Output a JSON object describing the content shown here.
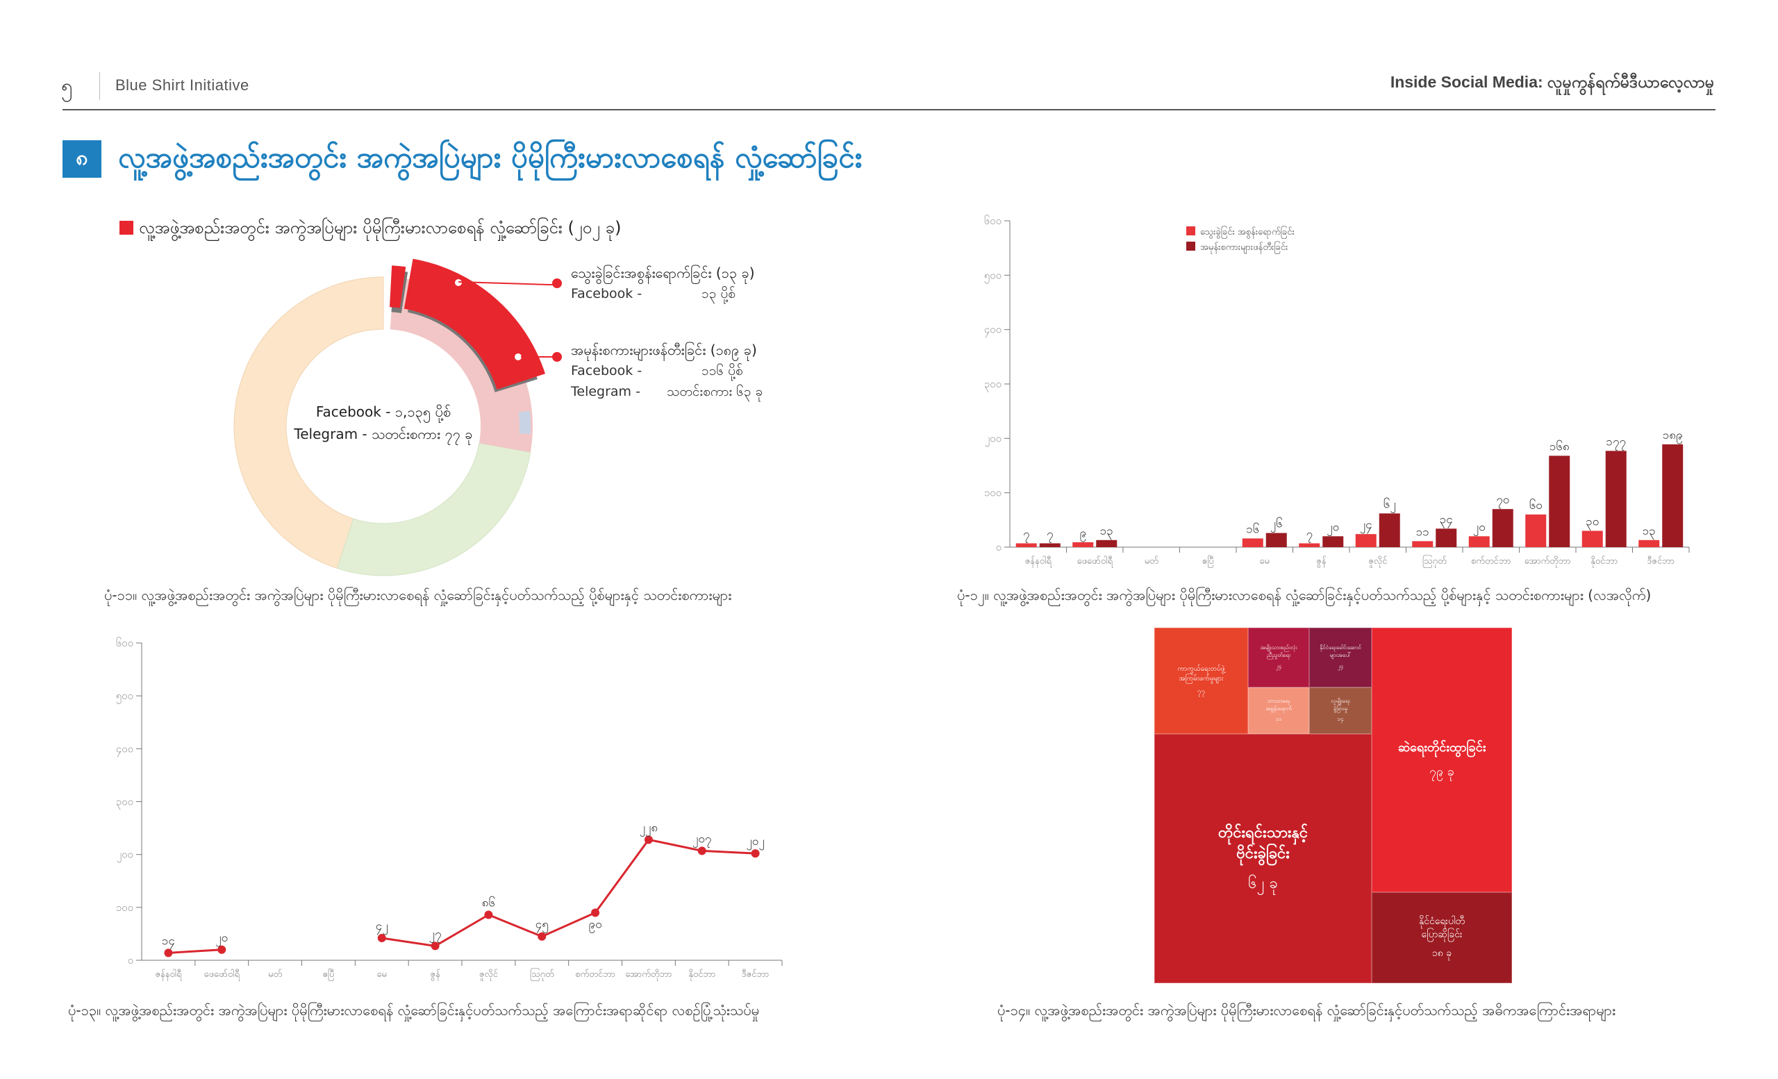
{
  "header": {
    "page_number": "၅",
    "org": "Blue Shirt Initiative",
    "report": "Inside Social Media: လူမှုကွန်ရက်မီဒီယာလေ့လာမှု"
  },
  "section": {
    "number": "၈",
    "title": "လူ့အဖွဲ့အစည်းအတွင်း အကွဲအပြဲများ ပိုမိုကြီးမားလာစေရန် လှုံ့ဆော်ခြင်း"
  },
  "donut": {
    "legend": "လူ့အဖွဲ့အစည်းအတွင်း အကွဲအပြဲများ ပိုမိုကြီးမားလာစေရန် လှုံ့ဆော်ခြင်း (၂၀၂ ခု)",
    "center_line1": "Facebook - ၁,၁၃၅ ပို့စ်",
    "center_line2": "Telegram - သတင်းစကား ၇၇ ခု",
    "callout1_title": "သွေးခွဲခြင်းအစွန်းရောက်ခြင်း (၁၃ ခု)",
    "callout1_fb_label": "Facebook  -",
    "callout1_fb_value": "၁၃ ပို့စ်",
    "callout2_title": "အမုန်းစကားများဖန်တီးခြင်း (၁၈၉ ခု)",
    "callout2_fb_label": "Facebook  -",
    "callout2_fb_value": "၁၁၆ ပို့စ်",
    "callout2_tg_label": "Telegram   -",
    "callout2_tg_value": "သတင်းစကား ၆၃ ခု",
    "caption": "ပုံ-၁၁။ လူ့အဖွဲ့အစည်းအတွင်း အကွဲအပြဲများ ပိုမိုကြီးမားလာစေရန် လှုံ့ဆော်ခြင်းနှင့်ပတ်သက်သည့် ပို့စ်များနှင့် သတင်းစကားများ",
    "colors": {
      "highlight": "#e8262e",
      "peach": "#fde5c9",
      "green": "#e3efd5",
      "pink": "#f2c6c6",
      "gray": "#777777"
    }
  },
  "barchart": {
    "caption": "ပုံ-၁၂။ လူ့အဖွဲ့အစည်းအတွင်း အကွဲအပြဲများ ပိုမိုကြီးမားလာစေရန် လှုံ့ဆော်ခြင်းနှင့်ပတ်သက်သည့် ပို့စ်များနှင့် သတင်းစကားများ (လအလိုက်)",
    "colors": {
      "series1": "#e8363b",
      "series2": "#9c1b22"
    }
  },
  "linechart": {
    "caption": "ပုံ-၁၃။ လူ့အဖွဲ့အစည်းအတွင်း အကွဲအပြဲများ ပိုမိုကြီးမားလာစေရန် လှုံ့ဆော်ခြင်းနှင့်ပတ်သက်သည့် အကြောင်းအရာဆိုင်ရာ လစဉ်ပြုံ့သုံးသပ်မှု",
    "color": "#d9262e"
  },
  "treemap": {
    "caption": "ပုံ-၁၄။ လူ့အဖွဲ့အစည်းအတွင်း အကွဲအပြဲများ ပိုမိုကြီးမားလာစေရန် လှုံ့ဆော်ခြင်းနှင့်ပတ်သက်သည့် အဓိကအကြောင်းအရာများ",
    "cells": [
      {
        "label1": "တိုင်းရင်းသားနှင့်",
        "label2": "ဗိုင်းခွဲခြင်း",
        "value": "၆၂ ခု",
        "color": "#c41f26"
      },
      {
        "label1": "ဆဲရေးတိုင်းထွာခြင်း",
        "label2": "",
        "value": "၇၉ ခု",
        "color": "#e8262e"
      },
      {
        "label1": "နိုင်ငံရေးပါတီ",
        "label2": "ပြောဆိုခြင်း",
        "value": "၁၈ ခု",
        "color": "#9c1b22"
      },
      {
        "label1": "ကာကွယ်ရေးတပ်ဖွဲ့",
        "label2": "အကြမ်းဖက်မှုများ",
        "value": "၇၇",
        "color": "#e8432b"
      },
      {
        "label1": "အမျိုးသားစည်းလုံး",
        "label2": "ညီညွတ်ရေး",
        "value": "၂၄",
        "color": "#b0193f"
      },
      {
        "label1": "နိုင်ငံရေးခေါင်းဆောင်",
        "label2": "များအပေါ်",
        "value": "၂၄",
        "color": "#871a3e"
      },
      {
        "label1": "ဘာသာရေး",
        "label2": "အစွန်းရောက်",
        "value": "၁၁",
        "color": "#f3937a"
      },
      {
        "label1": "လူမျိုးရေး",
        "label2": "ခွဲခြားမှု",
        "value": "၁၄",
        "color": "#a0573f"
      }
    ]
  },
  "chart_data": [
    {
      "type": "pie",
      "title": "လူ့အဖွဲ့အစည်းအတွင်း အကွဲအပြဲများ ပိုမိုကြီးမားလာစေရန် လှုံ့ဆော်ခြင်း (၂၀၂ ခု)",
      "categories": [
        "သွေးခွဲခြင်းအစွန်းရောက်ခြင်း",
        "အမုန်းစကားများဖန်တီးခြင်း"
      ],
      "values": [
        13,
        189
      ]
    },
    {
      "type": "bar",
      "categories": [
        "ဇန်နဝါရီ",
        "ဖေဖော်ဝါရီ",
        "မတ်",
        "ဧပြီ",
        "မေ",
        "ဇွန်",
        "ဇူလိုင်",
        "ဩဂုတ်",
        "စက်တင်ဘာ",
        "အောက်တိုဘာ",
        "နိုဝင်ဘာ",
        "ဒီဇင်ဘာ"
      ],
      "series": [
        {
          "name": "သွေးခွဲခြင်း အစွန်းရောက်ခြင်း",
          "values": [
            7,
            9,
            null,
            null,
            16,
            7,
            24,
            11,
            20,
            60,
            30,
            13
          ],
          "labels": [
            "၇",
            "၉",
            "",
            "",
            "၁၆",
            "၇",
            "၂၄",
            "၁၁",
            "၂၀",
            "၆၀",
            "၃၀",
            "၁၃"
          ]
        },
        {
          "name": "အမုန်းစကားများဖန်တီးခြင်း",
          "values": [
            7,
            13,
            null,
            null,
            26,
            20,
            62,
            34,
            70,
            168,
            177,
            189
          ],
          "labels": [
            "၇",
            "၁၃",
            "",
            "",
            "၂၆",
            "၂၀",
            "၆၂",
            "၃၄",
            "၇၀",
            "၁၆၈",
            "၁၇၇",
            "၁၈၉"
          ]
        }
      ],
      "ylim": [
        0,
        600
      ],
      "yticks": [
        "၀",
        "၁၀၀",
        "၂၀၀",
        "၃၀၀",
        "၄၀၀",
        "၅၀၀",
        "၆၀၀"
      ],
      "legend": "top-left"
    },
    {
      "type": "line",
      "categories": [
        "ဇန်နဝါရီ",
        "ဖေဖော်ဝါရီ",
        "မတ်",
        "ဧပြီ",
        "မေ",
        "ဇွန်",
        "ဇူလိုင်",
        "ဩဂုတ်",
        "စက်တင်ဘာ",
        "အောက်တိုဘာ",
        "နိုဝင်ဘာ",
        "ဒီဇင်ဘာ"
      ],
      "values": [
        14,
        20,
        null,
        null,
        42,
        27,
        86,
        45,
        90,
        228,
        207,
        202
      ],
      "labels": [
        "၁၄",
        "၂၀",
        "",
        "",
        "၄၂",
        "၂၇",
        "၈၆",
        "၄၅",
        "၉၀",
        "၂၂၈",
        "၂၀၇",
        "၂၀၂"
      ],
      "ylim": [
        0,
        600
      ],
      "yticks": [
        "၀",
        "၁၀၀",
        "၂၀၀",
        "၃၀၀",
        "၄၀၀",
        "၅၀၀",
        "၆၀၀"
      ]
    }
  ]
}
